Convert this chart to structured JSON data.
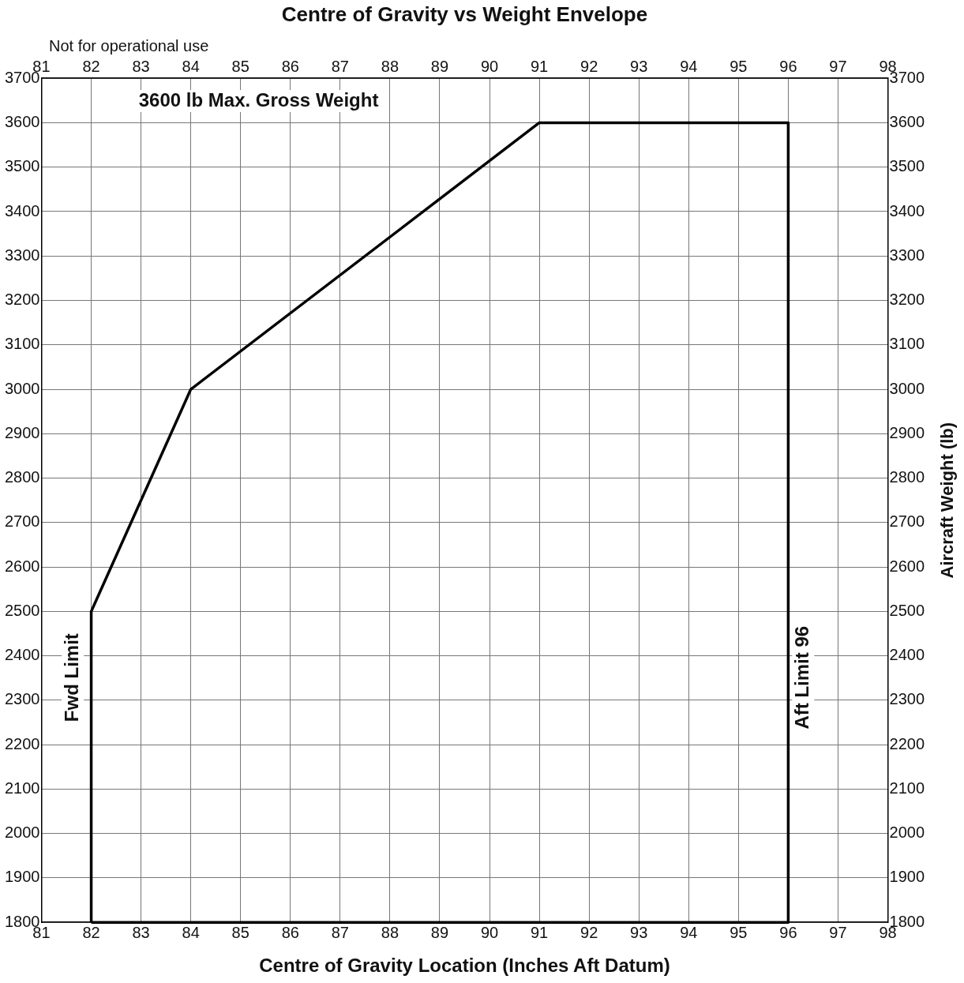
{
  "chart_data": {
    "type": "line",
    "title": "Centre of Gravity vs Weight Envelope",
    "xlabel": "Centre of Gravity Location (Inches Aft Datum)",
    "y2label": "Aircraft Weight (lb)",
    "series": [
      {
        "color": "#000000",
        "x": [
          82,
          82,
          84,
          91,
          96,
          96
        ],
        "values": [
          1800,
          2500,
          3000,
          3600,
          3600,
          1800
        ]
      },
      {
        "color": "#000000",
        "x": [
          82,
          96
        ],
        "values": [
          1800,
          1800
        ]
      }
    ],
    "xlim": [
      81,
      98
    ],
    "xticks": [
      81,
      82,
      83,
      84,
      85,
      86,
      87,
      88,
      89,
      90,
      91,
      92,
      93,
      94,
      95,
      96,
      97,
      98
    ],
    "x2lim": [
      81,
      98
    ],
    "x2ticks": [
      81,
      82,
      83,
      84,
      85,
      86,
      87,
      88,
      89,
      90,
      91,
      92,
      93,
      94,
      95,
      96,
      97,
      98
    ],
    "ylim": [
      1800,
      3700
    ],
    "yticks": [
      1800,
      1900,
      2000,
      2100,
      2200,
      2300,
      2400,
      2500,
      2600,
      2700,
      2800,
      2900,
      3000,
      3100,
      3200,
      3300,
      3400,
      3500,
      3600,
      3700
    ],
    "y2lim": [
      1800,
      3700
    ],
    "y2ticks": [
      1800,
      1900,
      2000,
      2100,
      2200,
      2300,
      2400,
      2500,
      2600,
      2700,
      2800,
      2900,
      3000,
      3100,
      3200,
      3300,
      3400,
      3500,
      3600,
      3700
    ],
    "grid": true,
    "legend": false,
    "marker": "none",
    "line_style": "solid",
    "annotations": [
      "Not for operational use",
      "3600 lb Max. Gross Weight",
      "Fwd Limit",
      "Aft Limit 96"
    ]
  }
}
